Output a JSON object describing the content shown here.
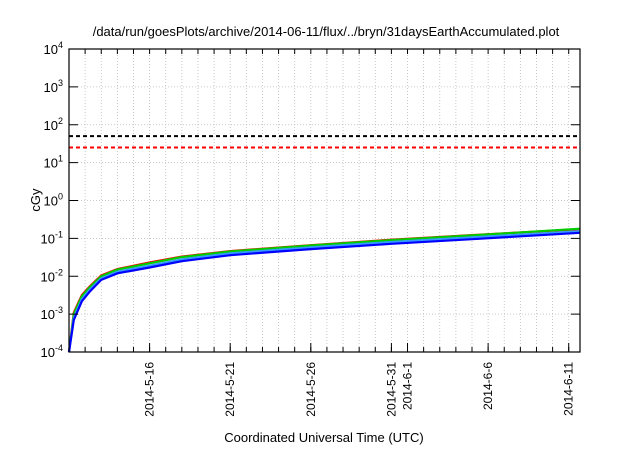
{
  "chart_data": {
    "type": "line",
    "title": "/data/run/goesPlots/archive/2014-06-11/flux/../bryn/31daysEarthAccumulated.plot",
    "xlabel": "Coordinated Universal Time (UTC)",
    "ylabel": "cGy",
    "x_units": "days since 2014-05-11",
    "xlim": [
      0,
      31.7
    ],
    "ylim": [
      0.0001,
      10000
    ],
    "yscale": "log",
    "grid": true,
    "xticks": [
      {
        "day": 5,
        "label": "2014-5-16"
      },
      {
        "day": 10,
        "label": "2014-5-21"
      },
      {
        "day": 15,
        "label": "2014-5-26"
      },
      {
        "day": 20,
        "label": "2014-5-31"
      },
      {
        "day": 21,
        "label": "2014-6-1"
      },
      {
        "day": 26,
        "label": "2014-6-6"
      },
      {
        "day": 31,
        "label": "2014-6-11"
      }
    ],
    "yticks": [
      {
        "value": 0.0001,
        "base": "10",
        "exp": "-4"
      },
      {
        "value": 0.001,
        "base": "10",
        "exp": "-3"
      },
      {
        "value": 0.01,
        "base": "10",
        "exp": "-2"
      },
      {
        "value": 0.1,
        "base": "10",
        "exp": "-1"
      },
      {
        "value": 1,
        "base": "10",
        "exp": "0"
      },
      {
        "value": 10,
        "base": "10",
        "exp": "1"
      },
      {
        "value": 100,
        "base": "10",
        "exp": "2"
      },
      {
        "value": 1000,
        "base": "10",
        "exp": "3"
      },
      {
        "value": 10000,
        "base": "10",
        "exp": "4"
      }
    ],
    "thresholds": [
      {
        "value": 50,
        "color": "#000000"
      },
      {
        "value": 25,
        "color": "#ff0000"
      }
    ],
    "x": [
      0,
      0.3,
      0.8,
      1.3,
      2,
      3,
      5,
      7,
      10,
      15,
      20,
      25,
      31.7
    ],
    "series": [
      {
        "name": "red",
        "color": "#ff0000",
        "values": [
          0.0001,
          0.0011,
          0.0032,
          0.0055,
          0.0105,
          0.0155,
          0.023,
          0.033,
          0.046,
          0.066,
          0.092,
          0.122,
          0.175
        ]
      },
      {
        "name": "green",
        "color": "#00cc00",
        "values": [
          0.0001,
          0.001,
          0.003,
          0.0052,
          0.01,
          0.015,
          0.022,
          0.032,
          0.045,
          0.065,
          0.09,
          0.12,
          0.18
        ]
      },
      {
        "name": "light-blue",
        "color": "#3399ff",
        "values": [
          0.0001,
          0.0008,
          0.0025,
          0.0045,
          0.0088,
          0.0132,
          0.019,
          0.028,
          0.04,
          0.058,
          0.08,
          0.106,
          0.155
        ]
      },
      {
        "name": "blue",
        "color": "#0000ff",
        "values": [
          0.0001,
          0.0007,
          0.0022,
          0.004,
          0.008,
          0.012,
          0.017,
          0.025,
          0.036,
          0.052,
          0.072,
          0.095,
          0.14
        ]
      }
    ]
  }
}
